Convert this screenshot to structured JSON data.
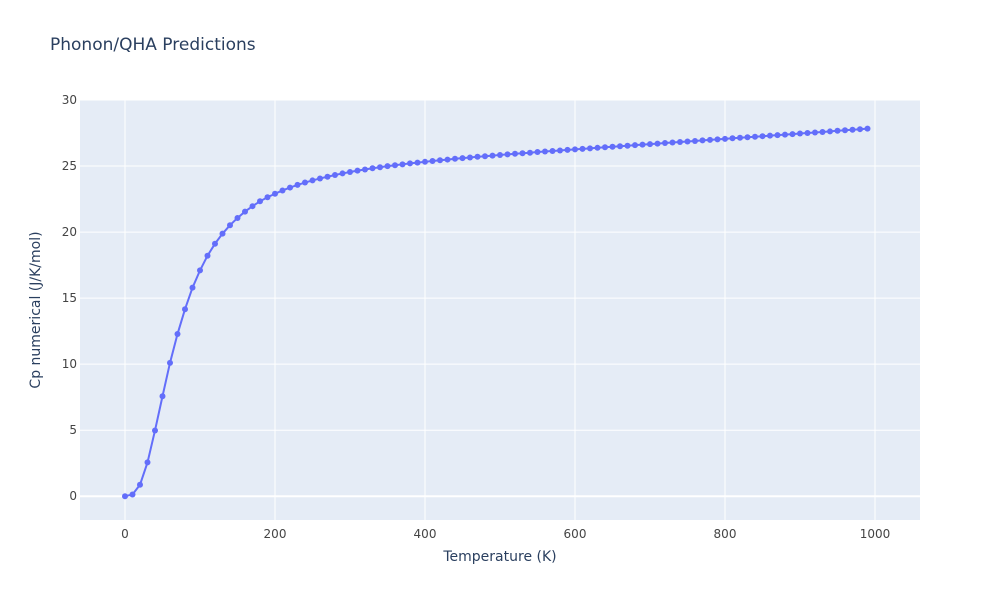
{
  "chart_data": {
    "type": "line",
    "title": "Phonon/QHA Predictions",
    "xlabel": "Temperature (K)",
    "ylabel": "Cp numerical (J/K/mol)",
    "xlim": [
      -60,
      1060
    ],
    "ylim": [
      -1.8,
      30
    ],
    "x_ticks": [
      0,
      200,
      400,
      600,
      800,
      1000
    ],
    "y_ticks": [
      0,
      5,
      10,
      15,
      20,
      25,
      30
    ],
    "grid": true,
    "markers": true,
    "colors": {
      "series": "#636efa",
      "plot_bg": "#e5ecf6",
      "grid": "#ffffff",
      "text": "#2a3f5f",
      "tick_text": "#444444"
    },
    "series": [
      {
        "x": [
          0,
          10,
          20,
          30,
          40,
          50,
          60,
          70,
          80,
          90,
          100,
          110,
          120,
          130,
          140,
          150,
          160,
          170,
          180,
          190,
          200,
          210,
          220,
          230,
          240,
          250,
          260,
          270,
          280,
          290,
          300,
          310,
          320,
          330,
          340,
          350,
          360,
          370,
          380,
          390,
          400,
          410,
          420,
          430,
          440,
          450,
          460,
          470,
          480,
          490,
          500,
          510,
          520,
          530,
          540,
          550,
          560,
          570,
          580,
          590,
          600,
          610,
          620,
          630,
          640,
          650,
          660,
          670,
          680,
          690,
          700,
          710,
          720,
          730,
          740,
          750,
          760,
          770,
          780,
          790,
          800,
          810,
          820,
          830,
          840,
          850,
          860,
          870,
          880,
          890,
          900,
          910,
          920,
          930,
          940,
          950,
          960,
          970,
          980,
          990
        ],
        "y": [
          0,
          0.13,
          0.87,
          2.56,
          4.98,
          7.57,
          10.1,
          12.28,
          14.16,
          15.79,
          17.1,
          18.21,
          19.12,
          19.88,
          20.52,
          21.07,
          21.55,
          21.96,
          22.33,
          22.64,
          22.9,
          23.15,
          23.37,
          23.57,
          23.75,
          23.91,
          24.06,
          24.19,
          24.32,
          24.44,
          24.55,
          24.65,
          24.74,
          24.83,
          24.91,
          24.99,
          25.06,
          25.13,
          25.2,
          25.26,
          25.32,
          25.38,
          25.44,
          25.49,
          25.55,
          25.6,
          25.65,
          25.7,
          25.74,
          25.79,
          25.84,
          25.88,
          25.93,
          25.97,
          26.01,
          26.06,
          26.1,
          26.14,
          26.18,
          26.22,
          26.26,
          26.3,
          26.34,
          26.38,
          26.42,
          26.46,
          26.5,
          26.54,
          26.58,
          26.62,
          26.66,
          26.7,
          26.74,
          26.78,
          26.82,
          26.86,
          26.9,
          26.94,
          26.98,
          27.02,
          27.06,
          27.1,
          27.14,
          27.18,
          27.22,
          27.26,
          27.3,
          27.34,
          27.38,
          27.42,
          27.46,
          27.5,
          27.54,
          27.58,
          27.62,
          27.67,
          27.71,
          27.75,
          27.79,
          27.83
        ]
      }
    ]
  }
}
